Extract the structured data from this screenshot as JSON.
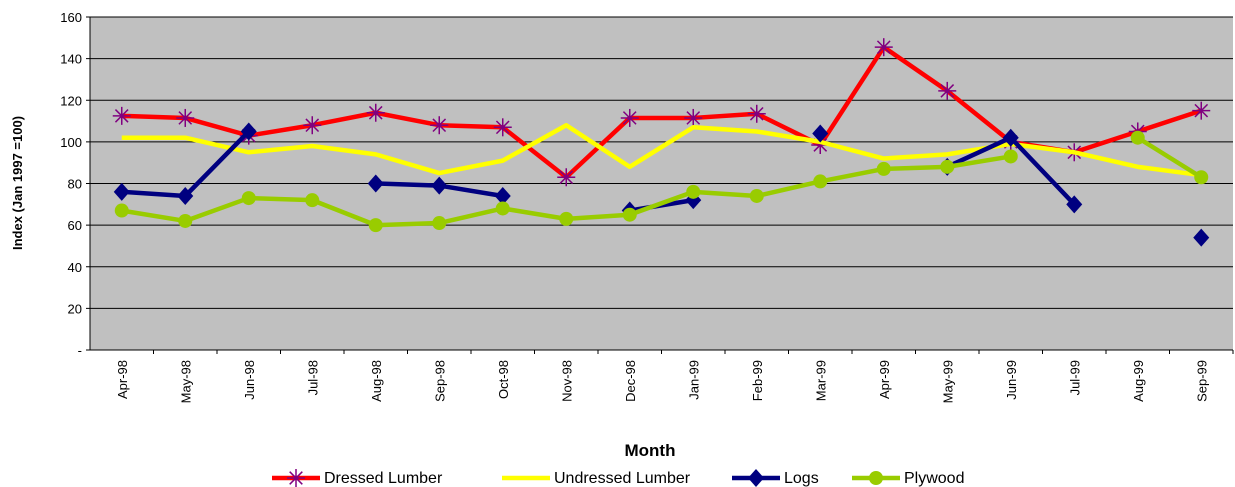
{
  "chart_data": {
    "type": "line",
    "x_label": "Month",
    "y_label": "Index (Jan 1997 =100)",
    "categories": [
      "Apr-98",
      "May-98",
      "Jun-98",
      "Jul-98",
      "Aug-98",
      "Sep-98",
      "Oct-98",
      "Nov-98",
      "Dec-98",
      "Jan-99",
      "Feb-99",
      "Mar-99",
      "Apr-99",
      "May-99",
      "Jun-99",
      "Jul-99",
      "Aug-99",
      "Sep-99"
    ],
    "series": [
      {
        "name": "Dressed Lumber",
        "color": "#ff0000",
        "marker": "asterisk",
        "marker_color": "#800080",
        "values": [
          112.5,
          111.5,
          103,
          108,
          114,
          108,
          107,
          83,
          111.5,
          111.5,
          113.5,
          98.5,
          145.5,
          124.5,
          100,
          95,
          105,
          115
        ]
      },
      {
        "name": "Undressed Lumber",
        "color": "#ffff00",
        "marker": "none",
        "values": [
          102,
          102,
          95,
          98,
          94,
          85,
          91,
          108,
          88,
          107,
          105,
          100,
          92,
          94,
          99,
          95,
          88,
          84
        ]
      },
      {
        "name": "Logs",
        "color": "#000080",
        "marker": "diamond",
        "marker_color": "#000080",
        "values": [
          76,
          74,
          105,
          null,
          80,
          79,
          74,
          null,
          67,
          72,
          null,
          104,
          null,
          88,
          102,
          70,
          null,
          54
        ]
      },
      {
        "name": "Plywood",
        "color": "#99cc00",
        "marker": "circle",
        "marker_color": "#99cc00",
        "values": [
          67,
          62,
          73,
          72,
          60,
          61,
          68,
          63,
          65,
          76,
          74,
          81,
          87,
          88,
          93,
          null,
          102,
          83
        ]
      }
    ],
    "ylim": [
      0,
      160
    ],
    "yticks": [
      {
        "value": 0,
        "label": "-"
      },
      20,
      40,
      60,
      80,
      100,
      120,
      140,
      160
    ],
    "grid": true,
    "background": "#c0c0c0",
    "legend": "bottom"
  }
}
